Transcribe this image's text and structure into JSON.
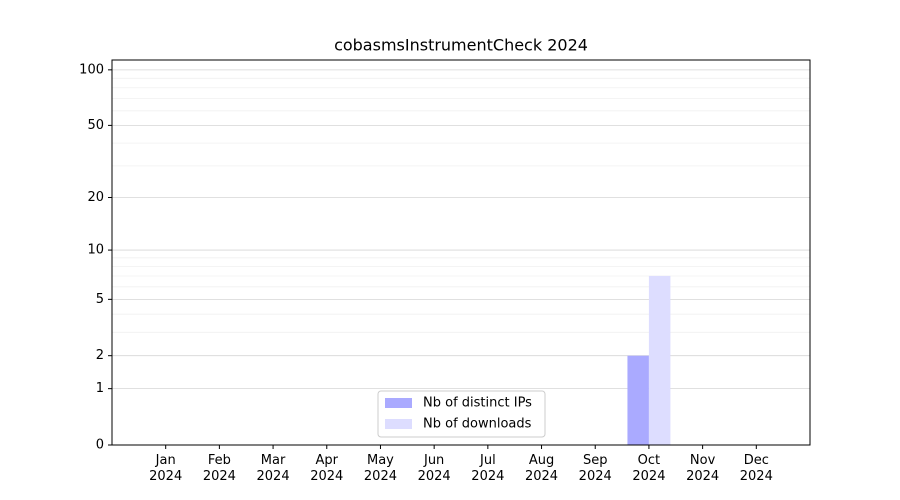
{
  "chart_data": {
    "type": "bar",
    "title": "cobasmsInstrumentCheck 2024",
    "categories": [
      "Jan\n2024",
      "Feb\n2024",
      "Mar\n2024",
      "Apr\n2024",
      "May\n2024",
      "Jun\n2024",
      "Jul\n2024",
      "Aug\n2024",
      "Sep\n2024",
      "Oct\n2024",
      "Nov\n2024",
      "Dec\n2024"
    ],
    "series": [
      {
        "name": "Nb of distinct IPs",
        "color": "#aaaaff",
        "values": [
          0,
          0,
          0,
          0,
          0,
          0,
          0,
          0,
          0,
          2,
          0,
          0
        ]
      },
      {
        "name": "Nb of downloads",
        "color": "#ddddff",
        "values": [
          0,
          0,
          0,
          0,
          0,
          0,
          0,
          0,
          0,
          7,
          0,
          0
        ]
      }
    ],
    "y_scale": "log1p",
    "ylim": [
      0,
      113
    ],
    "yticks": [
      0,
      1,
      2,
      5,
      10,
      20,
      50,
      100
    ],
    "minor_yticks": [
      3,
      4,
      6,
      7,
      8,
      9,
      30,
      40,
      60,
      70,
      80,
      90
    ],
    "grid": true,
    "legend": "lower center"
  }
}
